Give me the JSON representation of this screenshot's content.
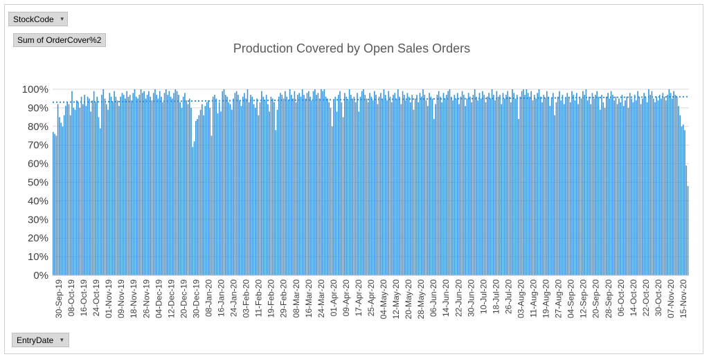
{
  "filters": {
    "stockcode_label": "StockCode",
    "value_field_label": "Sum of OrderCover%2",
    "axis_field_label": "EntryDate",
    "dropdown_icon": "triangle-down-icon"
  },
  "colors": {
    "bar": "#3a96dd",
    "trend": "#2e8fd6",
    "grid": "#d9d9d9",
    "text": "#404040",
    "title": "#595959"
  },
  "chart_data": {
    "type": "bar",
    "title": "Production Covered by Open Sales Orders",
    "xlabel": "",
    "ylabel": "",
    "ylim": [
      0,
      1
    ],
    "y_ticks": [
      "0%",
      "10%",
      "20%",
      "30%",
      "40%",
      "50%",
      "60%",
      "70%",
      "80%",
      "90%",
      "100%"
    ],
    "grid": true,
    "legend": "none",
    "x_tick_labels": [
      "30-Sep-19",
      "08-Oct-19",
      "16-Oct-19",
      "24-Oct-19",
      "01-Nov-19",
      "09-Nov-19",
      "18-Nov-19",
      "26-Nov-19",
      "04-Dec-19",
      "12-Dec-19",
      "20-Dec-19",
      "30-Dec-19",
      "08-Jan-20",
      "16-Jan-20",
      "24-Jan-20",
      "03-Feb-20",
      "11-Feb-20",
      "19-Feb-20",
      "29-Feb-20",
      "08-Mar-20",
      "16-Mar-20",
      "24-Mar-20",
      "01-Apr-20",
      "09-Apr-20",
      "17-Apr-20",
      "25-Apr-20",
      "04-May-20",
      "12-May-20",
      "20-May-20",
      "28-May-20",
      "06-Jun-20",
      "14-Jun-20",
      "22-Jun-20",
      "30-Jun-20",
      "10-Jul-20",
      "18-Jul-20",
      "26-Jul-20",
      "03-Aug-20",
      "11-Aug-20",
      "19-Aug-20",
      "27-Aug-20",
      "04-Sep-20",
      "12-Sep-20",
      "20-Sep-20",
      "28-Sep-20",
      "06-Oct-20",
      "14-Oct-20",
      "22-Oct-20",
      "30-Oct-20",
      "07-Nov-20",
      "15-Nov-20"
    ],
    "values": [
      0.77,
      0.76,
      0.75,
      0.92,
      0.85,
      0.82,
      0.8,
      0.86,
      0.91,
      0.93,
      0.92,
      0.86,
      0.99,
      0.9,
      0.89,
      0.94,
      0.93,
      0.9,
      0.96,
      0.92,
      0.97,
      0.91,
      0.96,
      0.95,
      0.88,
      0.94,
      0.99,
      0.93,
      0.96,
      0.85,
      0.79,
      0.97,
      1.0,
      0.95,
      0.92,
      0.89,
      0.98,
      0.96,
      0.93,
      0.99,
      0.96,
      0.94,
      0.91,
      0.96,
      0.98,
      0.97,
      0.95,
      0.99,
      0.96,
      0.97,
      0.94,
      0.98,
      1.0,
      0.96,
      0.95,
      0.97,
      1.0,
      0.98,
      0.99,
      0.95,
      0.97,
      0.99,
      0.96,
      0.94,
      0.98,
      1.0,
      0.97,
      0.95,
      0.99,
      0.96,
      0.93,
      0.98,
      1.0,
      0.97,
      0.99,
      0.96,
      0.95,
      0.98,
      1.0,
      0.99,
      0.97,
      0.93,
      0.9,
      0.96,
      0.98,
      0.94,
      0.92,
      0.95,
      0.9,
      0.69,
      0.72,
      0.83,
      0.84,
      0.86,
      0.89,
      0.92,
      0.86,
      0.91,
      0.93,
      0.94,
      0.9,
      0.75,
      0.96,
      0.97,
      0.95,
      0.87,
      0.93,
      0.88,
      0.99,
      1.0,
      0.97,
      0.96,
      0.93,
      0.92,
      0.89,
      0.95,
      0.98,
      0.99,
      0.97,
      0.94,
      0.91,
      0.96,
      0.98,
      0.95,
      1.0,
      0.93,
      0.97,
      0.96,
      0.92,
      0.9,
      0.95,
      0.86,
      0.93,
      0.99,
      0.96,
      0.94,
      0.97,
      0.92,
      0.88,
      0.96,
      0.95,
      0.93,
      0.78,
      0.89,
      0.96,
      0.98,
      0.97,
      0.95,
      0.99,
      0.96,
      0.94,
      1.0,
      0.97,
      0.95,
      0.99,
      0.93,
      0.97,
      0.98,
      0.96,
      1.0,
      0.97,
      0.95,
      0.98,
      0.99,
      0.96,
      0.94,
      0.99,
      1.0,
      0.97,
      0.98,
      0.95,
      1.0,
      0.99,
      1.0,
      0.96,
      0.95,
      0.93,
      0.9,
      0.8,
      0.94,
      0.96,
      0.88,
      0.97,
      0.99,
      0.93,
      0.85,
      0.98,
      0.96,
      0.94,
      1.0,
      0.97,
      0.95,
      0.96,
      0.93,
      0.98,
      0.88,
      0.96,
      0.99,
      1.0,
      0.97,
      0.95,
      0.93,
      0.98,
      0.96,
      0.94,
      0.99,
      0.97,
      0.92,
      0.96,
      0.98,
      0.95,
      1.0,
      0.97,
      0.94,
      0.99,
      0.96,
      0.93,
      0.97,
      0.98,
      0.95,
      1.0,
      0.96,
      0.92,
      0.99,
      0.97,
      0.94,
      0.98,
      0.96,
      0.93,
      0.97,
      0.89,
      0.95,
      0.97,
      0.93,
      0.98,
      0.96,
      1.0,
      0.97,
      0.94,
      0.91,
      0.98,
      0.96,
      0.95,
      0.84,
      0.92,
      0.97,
      0.99,
      0.96,
      0.93,
      0.98,
      0.95,
      0.97,
      0.99,
      1.0,
      0.96,
      0.94,
      0.97,
      0.95,
      0.98,
      0.92,
      0.96,
      0.99,
      0.97,
      0.91,
      0.95,
      0.98,
      0.96,
      0.93,
      0.97,
      1.0,
      0.96,
      0.94,
      0.98,
      0.95,
      0.99,
      0.97,
      0.93,
      0.96,
      0.98,
      0.95,
      1.0,
      0.97,
      0.94,
      0.99,
      0.96,
      0.97,
      0.92,
      0.98,
      0.95,
      0.97,
      0.99,
      0.96,
      0.93,
      1.0,
      0.98,
      0.95,
      0.97,
      0.84,
      0.96,
      0.99,
      1.0,
      0.97,
      1.0,
      0.98,
      0.96,
      0.99,
      0.94,
      0.97,
      0.95,
      0.98,
      1.0,
      0.96,
      0.93,
      0.97,
      0.95,
      0.99,
      0.96,
      0.91,
      0.95,
      0.98,
      0.86,
      0.93,
      0.96,
      0.99,
      0.94,
      0.97,
      0.92,
      0.95,
      0.98,
      0.96,
      0.93,
      0.99,
      0.97,
      0.94,
      0.98,
      0.92,
      0.96,
      0.95,
      0.99,
      0.97,
      1.0,
      0.94,
      0.96,
      0.92,
      0.98,
      0.95,
      0.97,
      0.99,
      0.96,
      0.89,
      0.97,
      0.93,
      0.9,
      0.96,
      0.98,
      0.95,
      0.99,
      0.97,
      0.94,
      0.96,
      0.92,
      0.95,
      0.93,
      0.97,
      0.91,
      0.94,
      0.96,
      0.9,
      0.98,
      0.95,
      0.93,
      0.97,
      0.94,
      0.99,
      0.96,
      0.92,
      0.95,
      0.98,
      0.96,
      0.93,
      1.0,
      0.97,
      0.99,
      0.95,
      0.93,
      0.96,
      0.94,
      0.97,
      0.95,
      0.98,
      0.96,
      0.94,
      0.97,
      1.0,
      0.98,
      0.95,
      0.99,
      0.97,
      0.96,
      0.91,
      0.86,
      0.8,
      0.81,
      0.78,
      0.59,
      0.48
    ],
    "trendline": {
      "start": 0.93,
      "end": 0.96,
      "style": "dotted"
    }
  }
}
